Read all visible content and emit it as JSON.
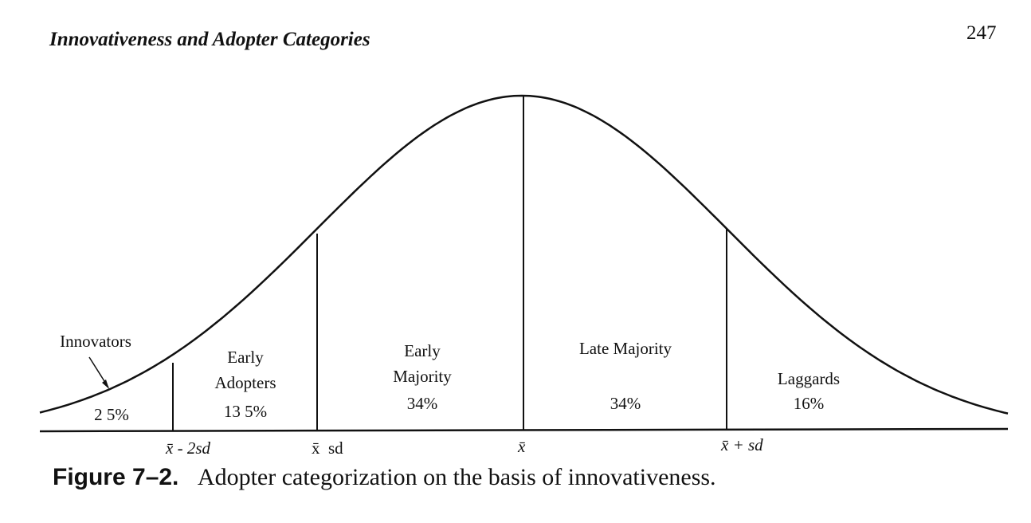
{
  "header": {
    "title": "Innovativeness and Adopter Categories",
    "page_number": "247"
  },
  "figure": {
    "regions": [
      {
        "name": "Innovators",
        "share": "2 5%"
      },
      {
        "name": "Early Adopters",
        "share": "13 5%"
      },
      {
        "name": "Early Majority",
        "share": "34%"
      },
      {
        "name": "Late Majority",
        "share": "34%"
      },
      {
        "name": "Laggards",
        "share": "16%"
      }
    ],
    "axis_labels": [
      "x̄ - 2sd",
      "x̄  sd",
      "x̄",
      "x̄ + sd"
    ],
    "caption": {
      "label": "Figure 7–2.",
      "text": "Adopter categorization on the basis of innovativeness."
    }
  }
}
